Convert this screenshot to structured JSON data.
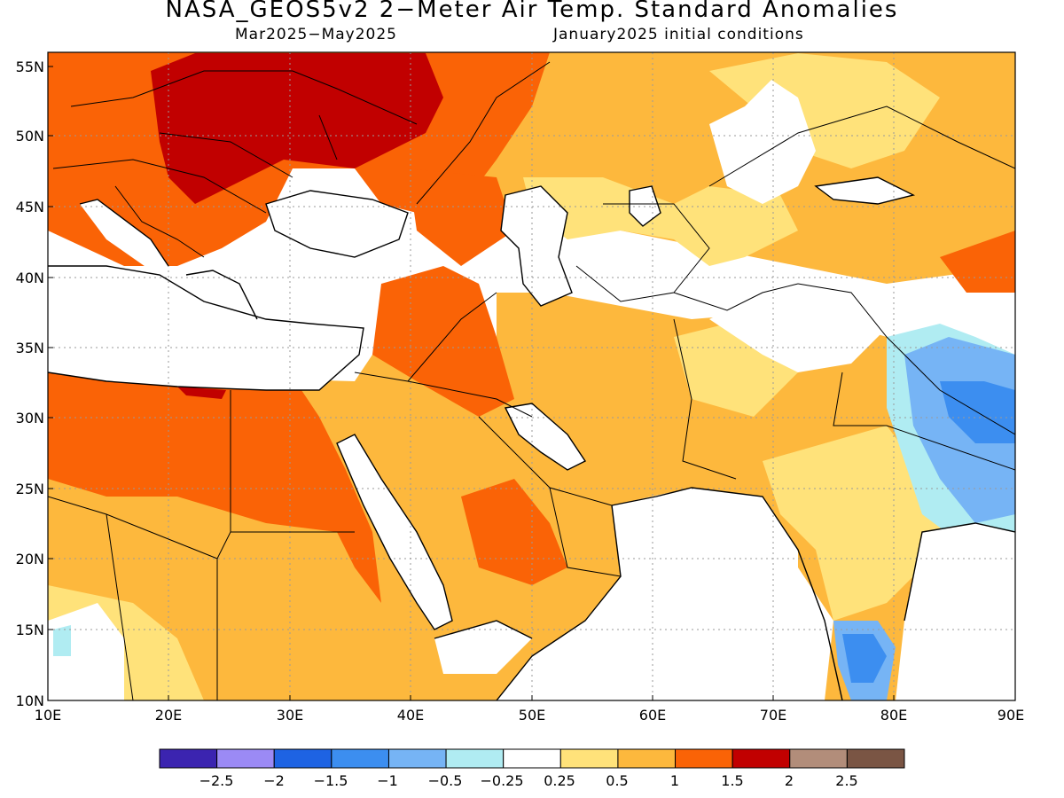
{
  "title": "NASA_GEOS5v2 2-Meter Air Temp. Standard Anomalies",
  "period": "Mar2025-May2025",
  "initial_conditions": "January2025 initial conditions",
  "lat_labels": [
    "55N",
    "50N",
    "45N",
    "40N",
    "35N",
    "30N",
    "25N",
    "20N",
    "15N",
    "10N"
  ],
  "lon_labels": [
    "10E",
    "20E",
    "30E",
    "40E",
    "50E",
    "60E",
    "70E",
    "80E",
    "90E"
  ],
  "colorbar": {
    "colors": [
      "#3b24b0",
      "#9b8af5",
      "#1e63e3",
      "#3c8ef0",
      "#76b4f5",
      "#b0ecf2",
      "#ffffff",
      "#ffe27a",
      "#fdb83d",
      "#fa6306",
      "#c10000",
      "#b28d7a",
      "#7a5544"
    ],
    "labels": [
      "-2.5",
      "-2",
      "-1.5",
      "-1",
      "-0.5",
      "-0.25",
      "0.25",
      "0.5",
      "1",
      "1.5",
      "2",
      "2.5"
    ]
  },
  "map_colors": {
    "lt_yellow": "#ffe27a",
    "orange_lt": "#fdb83d",
    "orange": "#fa6306",
    "red": "#c10000",
    "cyan": "#b0ecf2",
    "lt_blue": "#76b4f5",
    "blue": "#3c8ef0",
    "dk_blue": "#1e63e3",
    "white": "#ffffff"
  }
}
